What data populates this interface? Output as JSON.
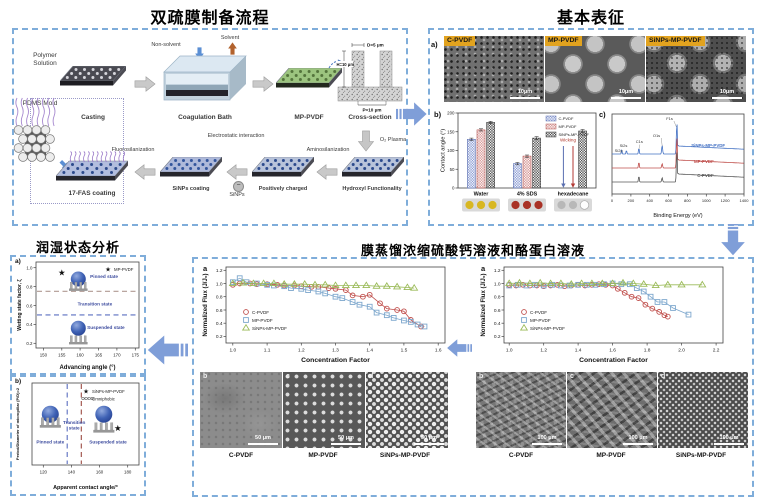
{
  "colors": {
    "section_border": "#7fadda",
    "big_arrow": "#7f9ed8",
    "cpvdf_red": "#c0504d",
    "mppvdf_blue": "#7da7cd",
    "sinps_green": "#9bbb59",
    "sem_chip_yellow": "#e2a31f"
  },
  "prep": {
    "title": "双疏膜制备流程",
    "polymer_solution": "Polymer Solution",
    "pdms_mold": "PDMS Mold",
    "casting": "Casting",
    "non_solvent": "Non-solvent",
    "solvent": "Solvent",
    "coagulation_bath": "Coagulation Bath",
    "mp_pvdf": "MP-PVDF",
    "cross_section": "Cross-section",
    "dim_d": "D=5 μm",
    "dim_h": "H=10 μm",
    "dim_p": "P=10 μm",
    "o2_plasma": "O₂ Plasma",
    "hydroxyl": "Hydroxyl Functionality",
    "aminosilanization": "Aminosilanization",
    "positively_charged": "Positively charged",
    "electrostatic": "Electrostatic interaction",
    "minus": "−",
    "sinps": "SiNPs",
    "sinps_coating": "SiNPs coating",
    "fluorosilanization": "Fluorosilanization",
    "fas_coating": "17-FAS coating"
  },
  "characterization": {
    "title": "基本表征",
    "panel_a": "a)",
    "panel_b": "b)",
    "panel_c": "c)",
    "sem": [
      {
        "label": "C-PVDF",
        "scale": "10μm"
      },
      {
        "label": "MP-PVDF",
        "scale": "10μm"
      },
      {
        "label": "SiNPs-MP-PVDF",
        "scale": "10μm"
      }
    ]
  },
  "wetting": {
    "title": "润湿状态分析",
    "panel_a": "a)",
    "panel_b": "b)"
  },
  "md": {
    "title": "膜蒸馏浓缩硫酸钙溶液和酪蛋白溶液",
    "panel_letter": "a",
    "left_sem": {
      "letters": [
        "b",
        "c",
        "d"
      ],
      "labels": [
        "C-PVDF",
        "MP-PVDF",
        "SiNPs-MP-PVDF"
      ],
      "scale": "50 μm"
    },
    "right_sem": {
      "letters": [
        "b",
        "c",
        "d"
      ],
      "labels": [
        "C-PVDF",
        "MP-PVDF",
        "SiNPs-MP-PVDF"
      ],
      "scale": "100 μm"
    }
  },
  "chart_data": [
    {
      "type": "bar",
      "ylabel": "Contact angle (°)",
      "ylim": [
        0,
        200
      ],
      "yticks": [
        0,
        50,
        100,
        150,
        200
      ],
      "categories": [
        "Water",
        "4% SDS",
        "hexadecane"
      ],
      "series": [
        {
          "name": "C-PVDF",
          "values": [
            130,
            65,
            0
          ],
          "errors": [
            3,
            3,
            0
          ]
        },
        {
          "name": "MP-PVDF",
          "values": [
            155,
            85,
            0
          ],
          "errors": [
            3,
            3,
            0
          ]
        },
        {
          "name": "SiNPs-MP-PVDF",
          "values": [
            175,
            133,
            152
          ],
          "errors": [
            3,
            4,
            4
          ]
        }
      ],
      "annotations": {
        "wicking": "Wicking"
      },
      "droplet_rows": [
        [
          "#d8b722",
          "#d8b722",
          "#d8b722"
        ],
        [
          "#a93226",
          "#a93226",
          "#a93226"
        ],
        [
          "#b8b8b8",
          "#b8b8b8",
          "#ffffff"
        ]
      ]
    },
    {
      "type": "line",
      "xlabel": "Binding Energy (eV)",
      "xlim": [
        0,
        1400
      ],
      "xticks": [
        0,
        200,
        400,
        600,
        800,
        1000,
        1200,
        1400
      ],
      "peaks": [
        {
          "label": "F1s",
          "x": 688
        },
        {
          "label": "O1s",
          "x": 532
        },
        {
          "label": "C1s",
          "x": 285
        },
        {
          "label": "Si2s",
          "x": 153
        },
        {
          "label": "Si2p",
          "x": 103
        }
      ],
      "traces": [
        {
          "name": "SiNPs-MP-PVDF",
          "color": "#4472c4"
        },
        {
          "name": "MP-PVDF",
          "color": "#c0504d"
        },
        {
          "name": "C-PVDF",
          "color": "#595959"
        }
      ]
    },
    {
      "type": "scatter",
      "xlabel": "Advancing angle (°)",
      "ylabel": "Wetting state factor, ζ",
      "xlim": [
        148,
        176
      ],
      "xticks": [
        150,
        155,
        160,
        165,
        170,
        175
      ],
      "ylim": [
        0.15,
        1.06
      ],
      "yticks": [
        0.2,
        0.4,
        0.6,
        0.8,
        1.0
      ],
      "hlines": [
        {
          "y": 0.75,
          "color": "#b09a92"
        },
        {
          "y": 0.5,
          "color": "#5b6fc0"
        }
      ],
      "points": [
        {
          "x": 155,
          "y": 0.95,
          "marker": "star",
          "color": "#111111"
        }
      ],
      "legend": [
        {
          "marker": "star",
          "label": "MP-PVDF"
        }
      ],
      "regions": [
        {
          "label": "Pinned state",
          "x": 166.5,
          "y": 0.89
        },
        {
          "label": "Transition state",
          "x": 164,
          "y": 0.6
        },
        {
          "label": "Suspended state",
          "x": 167,
          "y": 0.35
        }
      ],
      "droplets": [
        {
          "x": 159.5,
          "y": 0.88,
          "state": "pinned"
        },
        {
          "x": 159.5,
          "y": 0.36,
          "state": "suspended"
        }
      ]
    },
    {
      "type": "scatter",
      "xlabel": "Apparent contact angle/°",
      "ylabel": "Period/Diameter of micropillar (P/D)=2",
      "xlim": [
        112,
        188
      ],
      "xticks": [
        120,
        140,
        160,
        180
      ],
      "ylim": [
        0,
        1
      ],
      "yticks": [],
      "vlines": [
        {
          "x": 137,
          "color": "#5b6fc0"
        },
        {
          "x": 147,
          "color": "#9c4a42"
        }
      ],
      "points": [
        {
          "x": 173,
          "y": 0.45,
          "marker": "star",
          "color": "#111111"
        }
      ],
      "legend": [
        {
          "marker": "star",
          "label": "SiNPs-MP-PVDF"
        },
        {
          "marker": "circles",
          "label": "Omniphobic"
        }
      ],
      "regions": [
        {
          "label": "Pinned state",
          "x": 125,
          "y": 0.26
        },
        {
          "label": "Transition\nstate",
          "x": 142,
          "y": 0.5
        },
        {
          "label": "Suspended state",
          "x": 166,
          "y": 0.26
        }
      ],
      "droplets": [
        {
          "x": 125,
          "y": 0.62,
          "state": "pinned"
        },
        {
          "x": 163,
          "y": 0.62,
          "state": "suspended"
        }
      ]
    },
    {
      "type": "line",
      "xlabel": "Concentration  Factor",
      "ylabel": "Normalized Flux (J/J₀)",
      "xlim": [
        0.98,
        1.62
      ],
      "xticks": [
        1.0,
        1.1,
        1.2,
        1.3,
        1.4,
        1.5,
        1.6
      ],
      "ylim": [
        0.1,
        1.25
      ],
      "yticks": [
        0.2,
        0.4,
        0.6,
        0.8,
        1.0,
        1.2
      ],
      "series": [
        {
          "name": "C-PVDF",
          "marker": "circle",
          "color": "#c0504d",
          "x": [
            1.0,
            1.02,
            1.05,
            1.07,
            1.1,
            1.13,
            1.15,
            1.18,
            1.2,
            1.23,
            1.25,
            1.28,
            1.3,
            1.33,
            1.35,
            1.38,
            1.4,
            1.43,
            1.45,
            1.48,
            1.5,
            1.52,
            1.55
          ],
          "y": [
            0.98,
            1.0,
            1.0,
            0.99,
            0.99,
            0.98,
            0.97,
            0.97,
            0.96,
            0.95,
            0.95,
            0.93,
            0.92,
            0.9,
            0.82,
            0.8,
            0.83,
            0.7,
            0.62,
            0.6,
            0.58,
            0.45,
            0.35
          ]
        },
        {
          "name": "MP-PVDF",
          "marker": "square",
          "color": "#7da7cd",
          "x": [
            1.0,
            1.02,
            1.04,
            1.07,
            1.1,
            1.12,
            1.15,
            1.17,
            1.2,
            1.22,
            1.25,
            1.27,
            1.3,
            1.32,
            1.35,
            1.37,
            1.4,
            1.42,
            1.45,
            1.47,
            1.5,
            1.52,
            1.54,
            1.56
          ],
          "y": [
            1.02,
            1.08,
            1.02,
            1.0,
            0.98,
            0.97,
            0.96,
            0.93,
            0.92,
            0.9,
            0.88,
            0.85,
            0.8,
            0.78,
            0.72,
            0.68,
            0.65,
            0.56,
            0.52,
            0.48,
            0.44,
            0.42,
            0.38,
            0.35
          ]
        },
        {
          "name": "SiNPs-MP-PVDF",
          "marker": "triangle",
          "color": "#9bbb59",
          "x": [
            1.0,
            1.03,
            1.06,
            1.09,
            1.12,
            1.15,
            1.18,
            1.21,
            1.24,
            1.27,
            1.3,
            1.33,
            1.36,
            1.39,
            1.42,
            1.45,
            1.48,
            1.51,
            1.53
          ],
          "y": [
            1.0,
            1.01,
            1.0,
            1.0,
            1.0,
            0.99,
            0.99,
            0.99,
            0.98,
            0.98,
            0.97,
            0.97,
            0.97,
            0.97,
            0.96,
            0.96,
            0.95,
            0.94,
            0.93
          ]
        }
      ]
    },
    {
      "type": "line",
      "xlabel": "Concentration  Factor",
      "ylabel": "Normalized Flux (J/J₀)",
      "xlim": [
        0.97,
        2.24
      ],
      "xticks": [
        1.0,
        1.2,
        1.4,
        1.6,
        1.8,
        2.0,
        2.2
      ],
      "ylim": [
        0.1,
        1.25
      ],
      "yticks": [
        0.2,
        0.4,
        0.6,
        0.8,
        1.0,
        1.2
      ],
      "series": [
        {
          "name": "C-PVDF",
          "marker": "circle",
          "color": "#c0504d",
          "x": [
            1.0,
            1.04,
            1.08,
            1.12,
            1.16,
            1.2,
            1.24,
            1.28,
            1.32,
            1.36,
            1.4,
            1.44,
            1.48,
            1.52,
            1.56,
            1.6,
            1.63,
            1.67,
            1.71,
            1.75,
            1.79,
            1.83,
            1.87,
            1.9,
            1.92
          ],
          "y": [
            0.98,
            0.97,
            0.98,
            0.97,
            0.97,
            0.96,
            0.97,
            0.98,
            0.96,
            0.97,
            0.98,
            0.97,
            0.98,
            0.99,
            0.98,
            0.97,
            0.92,
            0.86,
            0.8,
            0.78,
            0.68,
            0.62,
            0.57,
            0.52,
            0.5
          ]
        },
        {
          "name": "MP-PVDF",
          "marker": "square",
          "color": "#7da7cd",
          "x": [
            1.0,
            1.05,
            1.1,
            1.15,
            1.2,
            1.25,
            1.3,
            1.35,
            1.4,
            1.45,
            1.5,
            1.55,
            1.6,
            1.65,
            1.7,
            1.74,
            1.78,
            1.82,
            1.86,
            1.9,
            1.95,
            2.04
          ],
          "y": [
            0.97,
            0.98,
            0.97,
            0.98,
            0.97,
            0.98,
            0.97,
            0.97,
            0.98,
            0.98,
            0.98,
            0.99,
            1.0,
            0.99,
            0.99,
            0.93,
            0.88,
            0.8,
            0.72,
            0.72,
            0.63,
            0.53
          ]
        },
        {
          "name": "SiNPs-MP-PVDF",
          "marker": "triangle",
          "color": "#9bbb59",
          "x": [
            1.0,
            1.06,
            1.12,
            1.18,
            1.24,
            1.3,
            1.36,
            1.42,
            1.48,
            1.54,
            1.6,
            1.66,
            1.72,
            1.78,
            1.85,
            1.92,
            2.0,
            2.12
          ],
          "y": [
            1.0,
            1.01,
            1.0,
            1.01,
            1.0,
            1.0,
            0.99,
            1.0,
            1.0,
            1.0,
            1.0,
            1.01,
            1.0,
            0.99,
            0.97,
            0.98,
            0.98,
            0.98
          ]
        }
      ]
    }
  ]
}
